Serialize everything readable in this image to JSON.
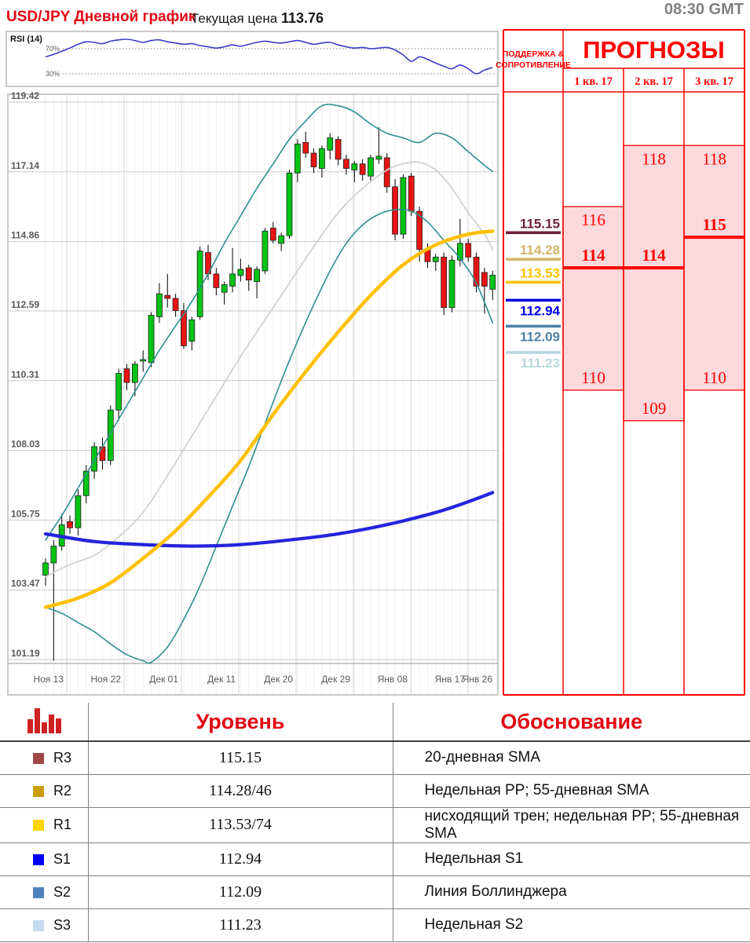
{
  "header": {
    "title": "USD/JPY Дневной график",
    "price_label": "Текущая цена",
    "price_value": "113.76",
    "timestamp": "08:30 GMT"
  },
  "colors": {
    "accent_red": "#e30613",
    "forecast_red": "#ff0000",
    "forecast_fill": "#fcd9dc",
    "candle_up": "#00c414",
    "candle_down": "#e81414",
    "sma_20_gray": "#d2d2d2",
    "sma_55_yellow": "#ffc000",
    "sma_200_blue": "#2424dd",
    "bollinger_teal": "#2e8f8f",
    "rsi_line": "#3b3bc8",
    "axis_text": "#595959",
    "grid_major": "#c9c9c9",
    "grid_minor": "#f0f0f0",
    "border_gray": "#a6a6a6"
  },
  "rsi_panel": {
    "label": "RSI (14)",
    "upper_label": "70%",
    "lower_label": "30%",
    "upper_level": 70,
    "lower_level": 30,
    "values": [
      57,
      61,
      66,
      71,
      77,
      81,
      80,
      78,
      82,
      84,
      85,
      83,
      80,
      83,
      84,
      81,
      79,
      77,
      78,
      75,
      73,
      71,
      73,
      76,
      74,
      77,
      80,
      82,
      80,
      79,
      81,
      83,
      80,
      77,
      79,
      80,
      76,
      73,
      71,
      72,
      70,
      71,
      72,
      68,
      60,
      50,
      57,
      53,
      47,
      42,
      38,
      44,
      38,
      30,
      36,
      40
    ]
  },
  "chart_data": {
    "type": "candlestick",
    "title": "USD/JPY Дневной график",
    "current_price": 113.76,
    "y_axis_labels": [
      119.42,
      117.14,
      114.86,
      112.59,
      110.31,
      108.03,
      105.75,
      103.47,
      101.19
    ],
    "x_axis_labels": [
      "Ноя 13",
      "Ноя 22",
      "Дек 01",
      "Дек 11",
      "Дек 20",
      "Дек 29",
      "Янв 08",
      "Янв 17",
      "Янв 26"
    ],
    "ylim": [
      101.0,
      119.7
    ],
    "grid": true,
    "candles_ohlc": [
      [
        103.95,
        104.5,
        103.6,
        104.35
      ],
      [
        104.35,
        105.1,
        101.15,
        104.9
      ],
      [
        104.9,
        105.95,
        104.75,
        105.6
      ],
      [
        105.7,
        105.9,
        105.3,
        105.5
      ],
      [
        105.5,
        106.75,
        105.25,
        106.55
      ],
      [
        106.55,
        107.55,
        106.3,
        107.35
      ],
      [
        107.35,
        108.3,
        107.1,
        108.15
      ],
      [
        108.15,
        108.45,
        107.4,
        107.7
      ],
      [
        107.7,
        109.5,
        107.55,
        109.35
      ],
      [
        109.35,
        110.7,
        109.0,
        110.55
      ],
      [
        110.7,
        110.85,
        110.0,
        110.25
      ],
      [
        110.25,
        110.95,
        109.8,
        110.85
      ],
      [
        110.95,
        111.3,
        110.6,
        111.0
      ],
      [
        110.9,
        112.55,
        110.75,
        112.45
      ],
      [
        112.4,
        113.5,
        112.2,
        113.15
      ],
      [
        113.1,
        113.8,
        112.7,
        113.0
      ],
      [
        113.0,
        113.15,
        112.4,
        112.6
      ],
      [
        112.6,
        112.85,
        111.35,
        111.45
      ],
      [
        111.6,
        112.4,
        111.3,
        112.3
      ],
      [
        112.4,
        114.7,
        112.3,
        114.55
      ],
      [
        114.5,
        114.75,
        113.6,
        113.8
      ],
      [
        113.8,
        114.0,
        113.1,
        113.35
      ],
      [
        113.2,
        113.55,
        112.8,
        113.45
      ],
      [
        113.4,
        114.65,
        113.2,
        113.8
      ],
      [
        113.75,
        114.3,
        113.55,
        113.95
      ],
      [
        114.0,
        114.1,
        113.25,
        113.6
      ],
      [
        113.55,
        114.05,
        113.0,
        113.95
      ],
      [
        113.9,
        115.3,
        113.8,
        115.2
      ],
      [
        115.3,
        115.5,
        114.8,
        114.9
      ],
      [
        114.8,
        115.15,
        114.55,
        115.05
      ],
      [
        115.05,
        117.2,
        114.95,
        117.1
      ],
      [
        117.1,
        118.2,
        116.8,
        118.05
      ],
      [
        118.1,
        118.45,
        117.6,
        117.75
      ],
      [
        117.75,
        117.9,
        117.1,
        117.3
      ],
      [
        117.25,
        118.0,
        116.95,
        117.9
      ],
      [
        117.85,
        118.4,
        117.55,
        118.25
      ],
      [
        118.2,
        118.3,
        117.35,
        117.55
      ],
      [
        117.55,
        117.7,
        117.05,
        117.25
      ],
      [
        117.2,
        117.5,
        116.8,
        117.4
      ],
      [
        117.4,
        117.55,
        116.85,
        117.05
      ],
      [
        117.0,
        117.7,
        116.85,
        117.6
      ],
      [
        117.55,
        118.6,
        117.4,
        117.65
      ],
      [
        117.6,
        117.75,
        116.45,
        116.65
      ],
      [
        116.65,
        116.9,
        114.9,
        115.1
      ],
      [
        115.1,
        117.05,
        114.95,
        116.95
      ],
      [
        117.0,
        117.1,
        115.7,
        115.85
      ],
      [
        115.85,
        116.0,
        114.2,
        114.6
      ],
      [
        114.6,
        114.8,
        114.0,
        114.2
      ],
      [
        114.2,
        114.45,
        113.9,
        114.35
      ],
      [
        114.35,
        114.5,
        112.45,
        112.7
      ],
      [
        112.7,
        114.4,
        112.55,
        114.25
      ],
      [
        114.25,
        115.6,
        114.05,
        114.8
      ],
      [
        114.8,
        114.95,
        114.2,
        114.35
      ],
      [
        114.35,
        114.5,
        113.2,
        113.4
      ],
      [
        113.85,
        114.0,
        112.5,
        113.4
      ],
      [
        113.3,
        113.9,
        112.95,
        113.76
      ]
    ],
    "overlays": {
      "sma_20_gray": [
        [
          0,
          103.9
        ],
        [
          3,
          104.3
        ],
        [
          6,
          104.6
        ],
        [
          9,
          105.2
        ],
        [
          12,
          106.0
        ],
        [
          15,
          107.2
        ],
        [
          18,
          108.5
        ],
        [
          21,
          109.8
        ],
        [
          24,
          111.1
        ],
        [
          27,
          112.3
        ],
        [
          30,
          113.5
        ],
        [
          33,
          114.7
        ],
        [
          36,
          115.8
        ],
        [
          39,
          116.6
        ],
        [
          42,
          117.2
        ],
        [
          44,
          117.4
        ],
        [
          46,
          117.45
        ],
        [
          48,
          117.2
        ],
        [
          50,
          116.6
        ],
        [
          52,
          115.8
        ],
        [
          54,
          115.1
        ],
        [
          55,
          114.6
        ]
      ],
      "sma_55_yellow": [
        [
          0,
          102.9
        ],
        [
          4,
          103.2
        ],
        [
          8,
          103.7
        ],
        [
          12,
          104.5
        ],
        [
          16,
          105.4
        ],
        [
          20,
          106.5
        ],
        [
          24,
          107.7
        ],
        [
          28,
          109.2
        ],
        [
          32,
          110.6
        ],
        [
          36,
          111.9
        ],
        [
          40,
          113.1
        ],
        [
          44,
          114.1
        ],
        [
          48,
          114.75
        ],
        [
          52,
          115.1
        ],
        [
          55,
          115.2
        ]
      ],
      "sma_200_blue": [
        [
          0,
          105.3
        ],
        [
          6,
          105.05
        ],
        [
          12,
          104.95
        ],
        [
          18,
          104.9
        ],
        [
          24,
          104.95
        ],
        [
          30,
          105.1
        ],
        [
          36,
          105.3
        ],
        [
          42,
          105.6
        ],
        [
          48,
          106.0
        ],
        [
          52,
          106.35
        ],
        [
          55,
          106.65
        ]
      ],
      "bollinger_upper": [
        [
          0,
          105.1
        ],
        [
          2,
          105.9
        ],
        [
          4,
          106.8
        ],
        [
          6,
          107.7
        ],
        [
          8,
          108.6
        ],
        [
          10,
          109.5
        ],
        [
          12,
          110.4
        ],
        [
          14,
          111.3
        ],
        [
          16,
          112.1
        ],
        [
          18,
          112.9
        ],
        [
          20,
          113.8
        ],
        [
          22,
          114.8
        ],
        [
          24,
          115.7
        ],
        [
          26,
          116.6
        ],
        [
          28,
          117.4
        ],
        [
          30,
          118.2
        ],
        [
          32,
          118.8
        ],
        [
          34,
          119.3
        ],
        [
          36,
          119.3
        ],
        [
          38,
          119.1
        ],
        [
          40,
          118.7
        ],
        [
          42,
          118.4
        ],
        [
          44,
          118.25
        ],
        [
          46,
          118.1
        ],
        [
          48,
          118.4
        ],
        [
          50,
          118.25
        ],
        [
          52,
          117.8
        ],
        [
          54,
          117.35
        ],
        [
          55,
          117.15
        ]
      ],
      "bollinger_lower": [
        [
          0,
          102.9
        ],
        [
          2,
          102.7
        ],
        [
          4,
          102.4
        ],
        [
          6,
          102.1
        ],
        [
          8,
          101.7
        ],
        [
          10,
          101.35
        ],
        [
          12,
          101.15
        ],
        [
          13,
          101.1
        ],
        [
          15,
          101.6
        ],
        [
          17,
          102.5
        ],
        [
          19,
          103.6
        ],
        [
          21,
          104.9
        ],
        [
          23,
          106.2
        ],
        [
          25,
          107.5
        ],
        [
          27,
          108.9
        ],
        [
          29,
          110.3
        ],
        [
          31,
          111.6
        ],
        [
          33,
          112.8
        ],
        [
          35,
          113.9
        ],
        [
          37,
          114.8
        ],
        [
          39,
          115.4
        ],
        [
          41,
          115.75
        ],
        [
          43,
          115.9
        ],
        [
          45,
          115.85
        ],
        [
          47,
          115.5
        ],
        [
          49,
          114.9
        ],
        [
          51,
          114.3
        ],
        [
          53,
          113.5
        ],
        [
          55,
          112.2
        ]
      ]
    }
  },
  "support_resistance": {
    "header_line1": "ПОДДЕРЖКА &",
    "header_line2": "СОПРОТИВЛЕНИЕ",
    "levels": [
      {
        "value": 115.15,
        "color": "#6b1f3c",
        "label_side": "above"
      },
      {
        "value": 114.28,
        "color": "#d2b66b",
        "label_side": "above"
      },
      {
        "value": 113.53,
        "color": "#ffc000",
        "label_side": "above"
      },
      {
        "value": 112.94,
        "color": "#0000e6",
        "label_side": "below"
      },
      {
        "value": 112.09,
        "color": "#4e81a8",
        "label_side": "below"
      },
      {
        "value": 111.23,
        "color": "#b6d7de",
        "label_side": "below"
      }
    ]
  },
  "forecasts": {
    "title": "ПРОГНОЗЫ",
    "quarters": [
      "1 кв. 17",
      "2 кв. 17",
      "3 кв. 17"
    ],
    "ranges": [
      {
        "high": 116,
        "low": 110,
        "pivot": 114
      },
      {
        "high": 118,
        "low": 109,
        "pivot": 114
      },
      {
        "high": 118,
        "low": 110,
        "pivot": 115
      }
    ]
  },
  "levels_table": {
    "col_level": "Уровень",
    "col_reason": "Обоснование",
    "rows": [
      {
        "label": "R3",
        "color": "#a34745",
        "level": "115.15",
        "reason": "20-дневная SMA"
      },
      {
        "label": "R2",
        "color": "#c99d0a",
        "level": "114.28/46",
        "reason": "Недельная PP; 55-дневная SMA"
      },
      {
        "label": "R1",
        "color": "#ffd400",
        "level": "113.53/74",
        "reason": "нисходящий трен; недельная PP; 55-дневная SMA"
      },
      {
        "label": "S1",
        "color": "#0000f2",
        "level": "112.94",
        "reason": "Недельная S1"
      },
      {
        "label": "S2",
        "color": "#4f81bd",
        "level": "112.09",
        "reason": "Линия Боллинджера"
      },
      {
        "label": "S3",
        "color": "#c5d9f1",
        "level": "111.23",
        "reason": "Недельная S2"
      }
    ]
  }
}
